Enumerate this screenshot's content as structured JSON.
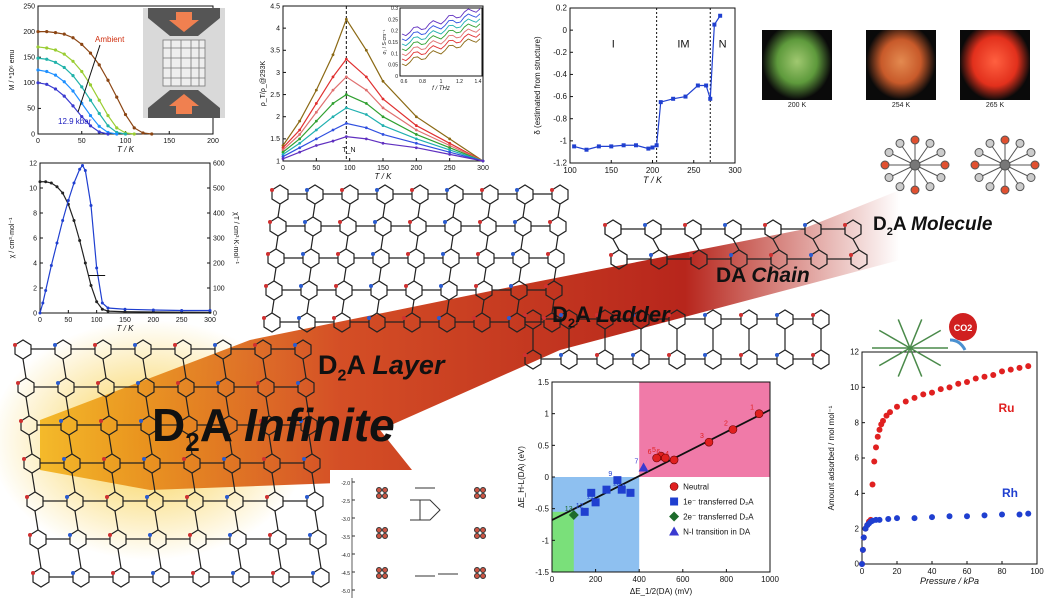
{
  "labels": {
    "infinite": [
      "D",
      "2",
      "A ",
      "Infinite"
    ],
    "layer": [
      "D",
      "2",
      "A ",
      "Layer"
    ],
    "ladder": [
      "D",
      "2",
      "A ",
      "Ladder"
    ],
    "chain": [
      "DA ",
      "Chain"
    ],
    "molecule": [
      "D",
      "2",
      "A ",
      "Molecule"
    ]
  },
  "photos": [
    {
      "caption": "200 K",
      "color": "#5e9a3c"
    },
    {
      "caption": "254 K",
      "color": "#c85a2a"
    },
    {
      "caption": "265 K",
      "color": "#e2301c"
    }
  ],
  "colors": {
    "arrow_dark": "#b31a10",
    "arrow_light": "#f0a020",
    "neutral": "#e02020",
    "one_e": "#1f3fd0",
    "two_e": "#1d6b2b",
    "ni": "#3a3ad0"
  },
  "chart_data": [
    {
      "id": "magnetization",
      "type": "line",
      "ylabel": "M / *10⁶ emu",
      "xlabel": "T / K",
      "xlim": [
        0,
        200
      ],
      "ylim": [
        0,
        250
      ],
      "xticks": [
        0,
        50,
        100,
        150,
        200
      ],
      "yticks": [
        0,
        50,
        100,
        150,
        200,
        250
      ],
      "annotations": [
        "Ambient",
        "12.9 kbar"
      ],
      "series": [
        {
          "color": "#8b4513",
          "x": [
            0,
            10,
            20,
            30,
            40,
            50,
            60,
            70,
            80,
            90,
            100,
            110,
            120,
            130
          ],
          "y": [
            200,
            200,
            198,
            195,
            188,
            175,
            158,
            135,
            105,
            72,
            38,
            12,
            2,
            0
          ]
        },
        {
          "color": "#9acd32",
          "x": [
            0,
            10,
            20,
            30,
            40,
            50,
            60,
            70,
            80,
            90,
            100,
            110
          ],
          "y": [
            170,
            168,
            164,
            156,
            142,
            122,
            96,
            66,
            36,
            12,
            2,
            0
          ]
        },
        {
          "color": "#20b2aa",
          "x": [
            0,
            10,
            20,
            30,
            40,
            50,
            60,
            70,
            80,
            90,
            100
          ],
          "y": [
            148,
            146,
            140,
            130,
            114,
            92,
            66,
            40,
            16,
            3,
            0
          ]
        },
        {
          "color": "#1e90ff",
          "x": [
            0,
            10,
            20,
            30,
            40,
            50,
            60,
            70,
            80,
            90
          ],
          "y": [
            125,
            122,
            115,
            102,
            84,
            60,
            36,
            15,
            3,
            0
          ]
        },
        {
          "color": "#3a3ad0",
          "x": [
            0,
            10,
            20,
            30,
            40,
            50,
            60,
            70,
            80
          ],
          "y": [
            100,
            97,
            88,
            74,
            55,
            34,
            16,
            4,
            0
          ]
        }
      ]
    },
    {
      "id": "susceptibility",
      "type": "line",
      "ylabel": "χ / cm³·mol⁻¹",
      "y2label": "χT / cm³·K·mol⁻¹",
      "xlabel": "T / K",
      "xlim": [
        0,
        300
      ],
      "ylim": [
        0,
        12
      ],
      "y2lim": [
        0,
        600
      ],
      "xticks": [
        0,
        50,
        100,
        150,
        200,
        250,
        300
      ],
      "yticks": [
        0,
        2,
        4,
        6,
        8,
        10,
        12
      ],
      "y2ticks": [
        0,
        100,
        200,
        300,
        400,
        500,
        600
      ],
      "series": [
        {
          "color": "#222222",
          "x": [
            0,
            10,
            20,
            30,
            40,
            50,
            60,
            70,
            80,
            90,
            100,
            110,
            120,
            150,
            200,
            250,
            300
          ],
          "y": [
            10.5,
            10.5,
            10.4,
            10.1,
            9.6,
            8.7,
            7.4,
            5.8,
            4.0,
            2.2,
            0.9,
            0.3,
            0.15,
            0.1,
            0.08,
            0.06,
            0.05
          ]
        },
        {
          "color": "#1f3fd0",
          "axis": "y2",
          "x": [
            0,
            5,
            10,
            20,
            30,
            40,
            50,
            60,
            70,
            75,
            80,
            90,
            100,
            110,
            120,
            150,
            200,
            250,
            300
          ],
          "y": [
            0,
            40,
            90,
            190,
            280,
            370,
            450,
            520,
            575,
            590,
            570,
            430,
            180,
            40,
            20,
            15,
            12,
            10,
            10
          ]
        }
      ]
    },
    {
      "id": "resistivity",
      "type": "line",
      "ylabel": "ρ_T/ρ_@293K",
      "xlabel": "T / K",
      "xlim": [
        0,
        300
      ],
      "ylim": [
        1,
        4.5
      ],
      "xticks": [
        0,
        50,
        100,
        150,
        200,
        250,
        300
      ],
      "yticks": [
        1,
        1.5,
        2,
        2.5,
        3,
        3.5,
        4,
        4.5
      ],
      "annotations": [
        "T_N"
      ],
      "inset": {
        "xlabel": "f / THz",
        "ylabel": "σ₁ / S·cm⁻¹",
        "xticks": [
          0.6,
          0.8,
          1,
          1.2,
          1.4
        ],
        "yticks": [
          0,
          0.05,
          0.1,
          0.15,
          0.2,
          0.25,
          0.3
        ]
      },
      "series": [
        {
          "color": "#8b6914",
          "x": [
            0,
            25,
            50,
            75,
            95,
            125,
            150,
            200,
            250,
            300
          ],
          "y": [
            1.35,
            1.9,
            2.6,
            3.4,
            4.2,
            3.5,
            2.8,
            2.0,
            1.5,
            1.0
          ]
        },
        {
          "color": "#e03030",
          "x": [
            0,
            25,
            50,
            75,
            95,
            125,
            150,
            200,
            250,
            300
          ],
          "y": [
            1.3,
            1.7,
            2.3,
            2.9,
            3.3,
            2.9,
            2.4,
            1.8,
            1.4,
            1.0
          ]
        },
        {
          "color": "#e07070",
          "x": [
            0,
            25,
            50,
            75,
            95,
            125,
            150,
            200,
            250,
            300
          ],
          "y": [
            1.25,
            1.6,
            2.1,
            2.6,
            2.9,
            2.6,
            2.2,
            1.7,
            1.35,
            1.0
          ]
        },
        {
          "color": "#30a030",
          "x": [
            0,
            25,
            50,
            75,
            95,
            125,
            150,
            200,
            250,
            300
          ],
          "y": [
            1.2,
            1.5,
            1.9,
            2.3,
            2.5,
            2.3,
            2.0,
            1.6,
            1.3,
            1.0
          ]
        },
        {
          "color": "#20b0b0",
          "x": [
            0,
            25,
            50,
            75,
            95,
            125,
            150,
            200,
            250,
            300
          ],
          "y": [
            1.15,
            1.4,
            1.7,
            2.0,
            2.2,
            2.05,
            1.8,
            1.5,
            1.25,
            1.0
          ]
        },
        {
          "color": "#3050e0",
          "x": [
            0,
            25,
            50,
            75,
            95,
            125,
            150,
            200,
            250,
            300
          ],
          "y": [
            1.1,
            1.3,
            1.5,
            1.7,
            1.85,
            1.75,
            1.6,
            1.4,
            1.2,
            1.0
          ]
        },
        {
          "color": "#6030c0",
          "x": [
            0,
            25,
            50,
            75,
            95,
            125,
            150,
            200,
            250,
            300
          ],
          "y": [
            1.05,
            1.2,
            1.35,
            1.45,
            1.55,
            1.5,
            1.4,
            1.3,
            1.15,
            1.0
          ]
        }
      ]
    },
    {
      "id": "delta",
      "type": "line",
      "ylabel": "δ (estimated from structure)",
      "xlabel": "T / K",
      "xlim": [
        100,
        300
      ],
      "ylim": [
        -1.2,
        0.2
      ],
      "xticks": [
        100,
        150,
        200,
        250,
        300
      ],
      "yticks": [
        -1.2,
        -1,
        -0.8,
        -0.6,
        -0.4,
        -0.2,
        0,
        0.2
      ],
      "regions": [
        "I",
        "IM",
        "N"
      ],
      "boundaries": [
        205,
        270
      ],
      "series": [
        {
          "color": "#2040d0",
          "x": [
            105,
            120,
            135,
            150,
            165,
            180,
            195,
            200,
            205,
            210,
            225,
            240,
            255,
            265,
            270,
            275,
            282
          ],
          "y": [
            -1.05,
            -1.08,
            -1.05,
            -1.05,
            -1.04,
            -1.04,
            -1.07,
            -1.06,
            -1.04,
            -0.65,
            -0.62,
            -0.6,
            -0.5,
            -0.5,
            -0.62,
            0.05,
            0.13
          ]
        }
      ]
    },
    {
      "id": "co2",
      "type": "scatter",
      "ylabel": "Amount adsorbed / mol mol⁻¹",
      "xlabel": "Pressure / kPa",
      "xlim": [
        0,
        100
      ],
      "ylim": [
        0,
        12
      ],
      "xticks": [
        0,
        20,
        40,
        60,
        80,
        100
      ],
      "yticks": [
        0,
        2,
        4,
        6,
        8,
        10,
        12
      ],
      "annotations": [
        "CO2"
      ],
      "series": [
        {
          "name": "Ru",
          "color": "#e02020",
          "x": [
            0,
            0.5,
            1,
            2,
            3,
            4,
            5,
            6,
            7,
            8,
            9,
            10,
            11,
            12,
            14,
            16,
            20,
            25,
            30,
            35,
            40,
            45,
            50,
            55,
            60,
            65,
            70,
            75,
            80,
            85,
            90,
            95
          ],
          "y": [
            0,
            0.8,
            1.5,
            2.0,
            2.2,
            2.4,
            2.5,
            4.5,
            5.8,
            6.6,
            7.2,
            7.6,
            7.9,
            8.1,
            8.4,
            8.6,
            8.9,
            9.2,
            9.4,
            9.6,
            9.7,
            9.9,
            10.0,
            10.2,
            10.3,
            10.5,
            10.6,
            10.7,
            10.9,
            11.0,
            11.1,
            11.2
          ]
        },
        {
          "name": "Rh",
          "color": "#1f3fd0",
          "x": [
            0,
            0.5,
            1,
            2,
            3,
            4,
            5,
            6,
            8,
            10,
            15,
            20,
            30,
            40,
            50,
            60,
            70,
            80,
            90,
            95
          ],
          "y": [
            0,
            0.8,
            1.5,
            2.0,
            2.2,
            2.3,
            2.4,
            2.45,
            2.5,
            2.5,
            2.55,
            2.6,
            2.6,
            2.65,
            2.7,
            2.7,
            2.75,
            2.8,
            2.8,
            2.85
          ]
        }
      ]
    },
    {
      "id": "energy",
      "type": "scatter",
      "ylabel": "ΔE_H-L(DA) (eV)",
      "xlabel": "ΔE_1/2(DA) (mV)",
      "xlim": [
        0,
        1000
      ],
      "ylim": [
        -1.5,
        1.5
      ],
      "xticks": [
        0,
        200,
        400,
        600,
        800,
        1000
      ],
      "yticks": [
        -1.5,
        -1,
        -0.5,
        0,
        0.5,
        1,
        1.5
      ],
      "legend": [
        "Neutral",
        "1e⁻ transferred D₂A",
        "2e⁻ transferred D₂A",
        "N-I transition in DA"
      ],
      "fit_line": {
        "x": [
          0,
          1000
        ],
        "y": [
          -0.68,
          1.06
        ]
      },
      "series": [
        {
          "name": "Neutral",
          "marker": "circle",
          "color": "#e02020",
          "x": [
            950,
            830,
            720,
            560,
            500,
            480,
            520
          ],
          "y": [
            1.0,
            0.75,
            0.55,
            0.27,
            0.33,
            0.3,
            0.3
          ],
          "labels": [
            "1",
            "2",
            "3",
            "4",
            "5",
            "6",
            "6"
          ]
        },
        {
          "name": "1e⁻ transferred D₂A",
          "marker": "square",
          "color": "#1f3fd0",
          "x": [
            150,
            200,
            320,
            300,
            360,
            250,
            180
          ],
          "y": [
            -0.55,
            -0.4,
            -0.2,
            -0.05,
            -0.25,
            -0.2,
            -0.25
          ],
          "labels": [
            "12",
            "11",
            "10",
            "9",
            "8",
            "",
            ""
          ]
        },
        {
          "name": "2e⁻ transferred D₂A",
          "marker": "diamond",
          "color": "#1d6b2b",
          "x": [
            100
          ],
          "y": [
            -0.6
          ],
          "labels": [
            "13"
          ]
        },
        {
          "name": "N-I transition in DA",
          "marker": "triangle",
          "color": "#3a3ad0",
          "x": [
            420
          ],
          "y": [
            0.15
          ],
          "labels": [
            "7"
          ]
        }
      ]
    }
  ]
}
